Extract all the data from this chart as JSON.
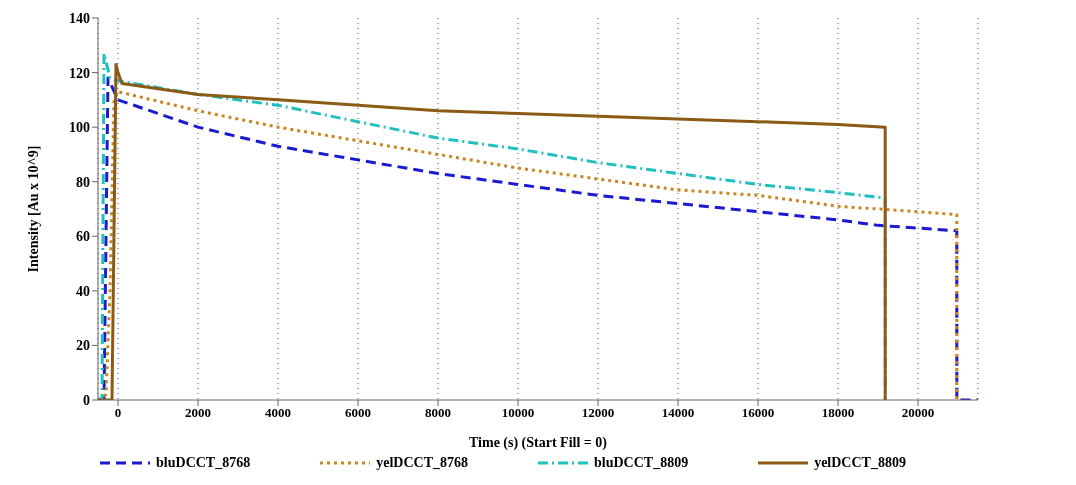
{
  "chart_data": {
    "type": "line",
    "xlabel": "Time (s) (Start Fill = 0)",
    "ylabel": "Intensity [Au x 10^9]",
    "xlim": [
      -500,
      21500
    ],
    "ylim": [
      0,
      140
    ],
    "xticks": [
      0,
      2000,
      4000,
      6000,
      8000,
      10000,
      12000,
      14000,
      16000,
      18000,
      20000
    ],
    "yticks": [
      0,
      20,
      40,
      60,
      80,
      100,
      120,
      140
    ],
    "grid": "x",
    "legend": "bottom",
    "marker": "none",
    "series": [
      {
        "name": "bluDCCT_8768",
        "color": "#1a1ad0",
        "line_style": "dashed",
        "x": [
          -500,
          -350,
          -300,
          -250,
          0,
          2000,
          4000,
          6000,
          8000,
          10000,
          12000,
          14000,
          16000,
          18000,
          19000,
          20000,
          20970,
          20971,
          21500
        ],
        "values": [
          0,
          0,
          60,
          118,
          110,
          100,
          93,
          88,
          83,
          79,
          75,
          72,
          69,
          66,
          64,
          63,
          62,
          0,
          0
        ]
      },
      {
        "name": "yelDCCT_8768",
        "color": "#c8861e",
        "line_style": "dotted",
        "x": [
          -500,
          -300,
          -200,
          -100,
          0,
          2000,
          4000,
          6000,
          8000,
          10000,
          12000,
          14000,
          16000,
          18000,
          20000,
          20970,
          20971
        ],
        "values": [
          0,
          2,
          40,
          110,
          113,
          106,
          100,
          95,
          90,
          85,
          81,
          77,
          75,
          71,
          69,
          68,
          0
        ]
      },
      {
        "name": "bluDCCT_8809",
        "color": "#20c0c0",
        "line_style": "dashdot",
        "x": [
          -500,
          -400,
          -350,
          -200,
          0,
          2000,
          4000,
          6000,
          8000,
          10000,
          12000,
          14000,
          16000,
          18000,
          19180,
          19181
        ],
        "values": [
          0,
          0,
          127,
          118,
          117,
          112,
          108,
          102,
          96,
          92,
          87,
          83,
          79,
          76,
          74,
          0
        ]
      },
      {
        "name": "yelDCCT_8809",
        "color": "#8b5a14",
        "line_style": "solid",
        "x": [
          -500,
          -150,
          -50,
          0,
          100,
          2000,
          4000,
          6000,
          8000,
          10000,
          12000,
          14000,
          16000,
          18000,
          19180,
          19181
        ],
        "values": [
          0,
          0,
          123,
          120,
          116,
          112,
          110,
          108,
          106,
          105,
          104,
          103,
          102,
          101,
          100,
          0
        ]
      }
    ]
  }
}
